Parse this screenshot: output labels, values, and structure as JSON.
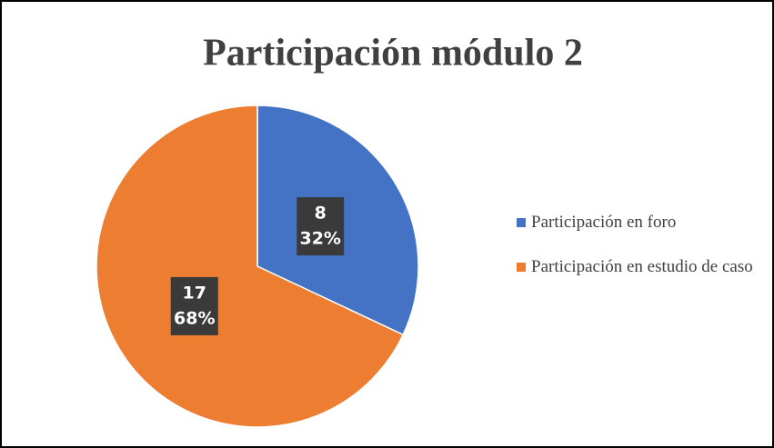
{
  "chart_data": {
    "type": "pie",
    "title": "Participación módulo 2",
    "categories": [
      "Participación en foro",
      "Participación en estudio de caso"
    ],
    "values": [
      8,
      17
    ],
    "percent_labels": [
      "32%",
      "68%"
    ],
    "colors": [
      "#4472c4",
      "#ed7d31"
    ],
    "legend": "right"
  }
}
